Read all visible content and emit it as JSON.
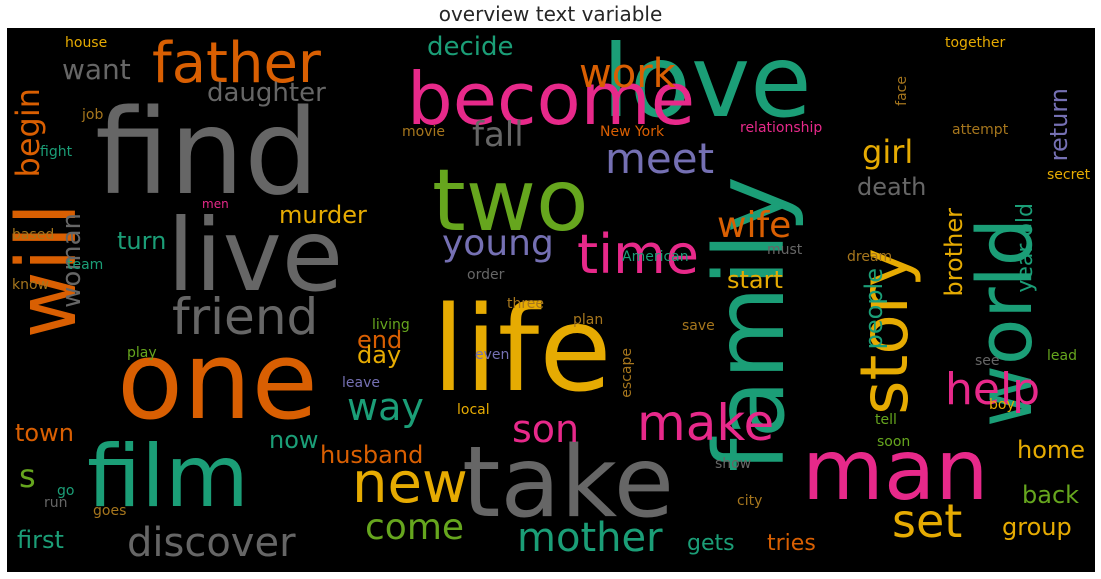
{
  "title": "overview text variable",
  "colors": {
    "teal": "#1b9e77",
    "orange": "#d95f02",
    "purple": "#7570b3",
    "pink": "#e7298a",
    "green": "#66a61e",
    "yellow": "#e6ab02",
    "brown": "#a6761d",
    "gray": "#666666"
  },
  "words": [
    {
      "text": "find",
      "color": "gray"
    },
    {
      "text": "life",
      "color": "yellow"
    },
    {
      "text": "love",
      "color": "teal"
    },
    {
      "text": "one",
      "color": "orange"
    },
    {
      "text": "live",
      "color": "gray"
    },
    {
      "text": "take",
      "color": "gray"
    },
    {
      "text": "family",
      "color": "teal"
    },
    {
      "text": "film",
      "color": "teal"
    },
    {
      "text": "become",
      "color": "pink"
    },
    {
      "text": "two",
      "color": "green"
    },
    {
      "text": "man",
      "color": "pink"
    },
    {
      "text": "world",
      "color": "teal"
    },
    {
      "text": "will",
      "color": "orange"
    },
    {
      "text": "story",
      "color": "yellow"
    },
    {
      "text": "father",
      "color": "orange"
    },
    {
      "text": "friend",
      "color": "gray"
    },
    {
      "text": "new",
      "color": "yellow"
    },
    {
      "text": "time",
      "color": "pink"
    },
    {
      "text": "young",
      "color": "purple"
    },
    {
      "text": "make",
      "color": "pink"
    },
    {
      "text": "discover",
      "color": "gray"
    },
    {
      "text": "work",
      "color": "orange"
    },
    {
      "text": "meet",
      "color": "purple"
    },
    {
      "text": "help",
      "color": "pink"
    },
    {
      "text": "set",
      "color": "yellow"
    },
    {
      "text": "mother",
      "color": "teal"
    },
    {
      "text": "way",
      "color": "teal"
    },
    {
      "text": "son",
      "color": "pink"
    },
    {
      "text": "wife",
      "color": "orange"
    },
    {
      "text": "come",
      "color": "green"
    },
    {
      "text": "fall",
      "color": "gray"
    },
    {
      "text": "girl",
      "color": "yellow"
    },
    {
      "text": "daughter",
      "color": "gray"
    },
    {
      "text": "begin",
      "color": "orange"
    },
    {
      "text": "want",
      "color": "gray"
    },
    {
      "text": "decide",
      "color": "teal"
    },
    {
      "text": "woman",
      "color": "gray"
    },
    {
      "text": "murder",
      "color": "yellow"
    },
    {
      "text": "death",
      "color": "gray"
    },
    {
      "text": "turn",
      "color": "teal"
    },
    {
      "text": "start",
      "color": "yellow"
    },
    {
      "text": "return",
      "color": "purple"
    },
    {
      "text": "year old",
      "color": "teal"
    },
    {
      "text": "brother",
      "color": "yellow"
    },
    {
      "text": "people",
      "color": "teal"
    },
    {
      "text": "end",
      "color": "orange"
    },
    {
      "text": "day",
      "color": "yellow"
    },
    {
      "text": "s",
      "color": "green"
    },
    {
      "text": "now",
      "color": "teal"
    },
    {
      "text": "town",
      "color": "orange"
    },
    {
      "text": "husband",
      "color": "orange"
    },
    {
      "text": "home",
      "color": "yellow"
    },
    {
      "text": "back",
      "color": "green"
    },
    {
      "text": "group",
      "color": "yellow"
    },
    {
      "text": "first",
      "color": "teal"
    },
    {
      "text": "gets",
      "color": "teal"
    },
    {
      "text": "tries",
      "color": "orange"
    },
    {
      "text": "house",
      "color": "yellow"
    },
    {
      "text": "job",
      "color": "brown"
    },
    {
      "text": "fight",
      "color": "teal"
    },
    {
      "text": "men",
      "color": "pink"
    },
    {
      "text": "based",
      "color": "brown"
    },
    {
      "text": "know",
      "color": "brown"
    },
    {
      "text": "team",
      "color": "teal"
    },
    {
      "text": "play",
      "color": "green"
    },
    {
      "text": "living",
      "color": "green"
    },
    {
      "text": "leave",
      "color": "purple"
    },
    {
      "text": "go",
      "color": "teal"
    },
    {
      "text": "goes",
      "color": "brown"
    },
    {
      "text": "run",
      "color": "gray"
    },
    {
      "text": "movie",
      "color": "brown"
    },
    {
      "text": "New York",
      "color": "orange"
    },
    {
      "text": "relationship",
      "color": "pink"
    },
    {
      "text": "American",
      "color": "teal"
    },
    {
      "text": "order",
      "color": "gray"
    },
    {
      "text": "three",
      "color": "brown"
    },
    {
      "text": "plan",
      "color": "brown"
    },
    {
      "text": "save",
      "color": "brown"
    },
    {
      "text": "even",
      "color": "purple"
    },
    {
      "text": "local",
      "color": "yellow"
    },
    {
      "text": "escape",
      "color": "brown"
    },
    {
      "text": "show",
      "color": "gray"
    },
    {
      "text": "city",
      "color": "brown"
    },
    {
      "text": "face",
      "color": "brown"
    },
    {
      "text": "together",
      "color": "yellow"
    },
    {
      "text": "attempt",
      "color": "brown"
    },
    {
      "text": "secret",
      "color": "yellow"
    },
    {
      "text": "must",
      "color": "gray"
    },
    {
      "text": "dream",
      "color": "brown"
    },
    {
      "text": "see",
      "color": "gray"
    },
    {
      "text": "lead",
      "color": "green"
    },
    {
      "text": "tell",
      "color": "green"
    },
    {
      "text": "soon",
      "color": "green"
    },
    {
      "text": "boy",
      "color": "yellow"
    }
  ]
}
